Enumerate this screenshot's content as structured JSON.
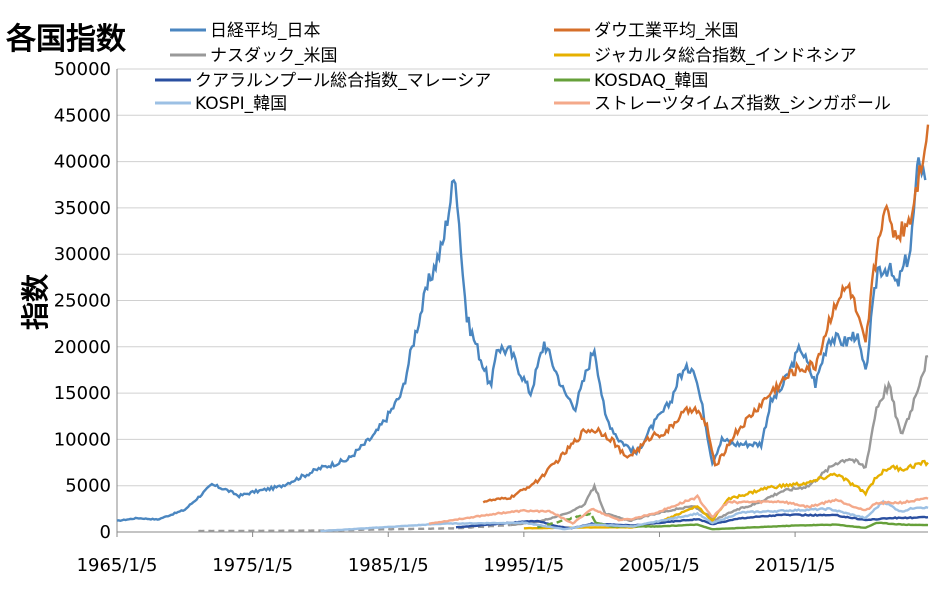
{
  "chart_data": {
    "type": "line",
    "title": "各国指数",
    "xlabel": "",
    "ylabel": "指数",
    "ylim": [
      0,
      50000
    ],
    "yticks": [
      "0",
      "5000",
      "10000",
      "15000",
      "20000",
      "25000",
      "30000",
      "35000",
      "40000",
      "45000",
      "50000"
    ],
    "xticks": [
      "1965/1/5",
      "1975/1/5",
      "1985/1/5",
      "1995/1/5",
      "2005/1/5",
      "2015/1/5"
    ],
    "xlim": [
      1965.0,
      2024.8
    ],
    "grid": "horizontal",
    "legend_position": "top",
    "series": [
      {
        "name": "日経平均_日本",
        "color": "#4a86c0",
        "width": 2.4,
        "x": [
          1965.0,
          1966.5,
          1968,
          1970,
          1972,
          1973,
          1974,
          1975,
          1977,
          1980,
          1982,
          1984,
          1985,
          1986,
          1987,
          1988,
          1989,
          1989.95,
          1990.5,
          1990.8,
          1992.6,
          1993,
          1994,
          1995.5,
          1996.5,
          1998,
          1998.8,
          2000.2,
          2001,
          2002,
          2003.3,
          2004.5,
          2005.8,
          2006.5,
          2007.5,
          2008.3,
          2008.9,
          2009.6,
          2010.5,
          2012.5,
          2013.2,
          2014,
          2015.4,
          2016.5,
          2017.5,
          2018.8,
          2019.5,
          2020.2,
          2020.6,
          2021.1,
          2021.9,
          2022.5,
          2023.5,
          2024.0,
          2024.2,
          2024.6
        ],
        "y": [
          1200,
          1500,
          1350,
          2400,
          5100,
          4600,
          3900,
          4300,
          4900,
          6900,
          7800,
          10500,
          12600,
          15000,
          21500,
          27000,
          31000,
          38900,
          28000,
          23000,
          15500,
          20000,
          19500,
          15000,
          20500,
          15000,
          13500,
          20000,
          12500,
          10000,
          8500,
          11500,
          14000,
          17000,
          18000,
          12500,
          7500,
          10000,
          9500,
          9500,
          14000,
          15500,
          20000,
          16000,
          21000,
          20500,
          21500,
          17000,
          22500,
          28500,
          28500,
          26500,
          30500,
          38500,
          40500,
          38000
        ]
      },
      {
        "name": "ダウ工業平均_米国",
        "color": "#d66f2a",
        "width": 2.4,
        "x": [
          1992,
          1994,
          1996,
          1998,
          1999.5,
          2000.5,
          2001.5,
          2002.5,
          2003.5,
          2004.5,
          2005.5,
          2006.5,
          2007.5,
          2008.5,
          2009.1,
          2010.5,
          2012,
          2013.5,
          2015,
          2016.5,
          2018,
          2019,
          2020.2,
          2020.8,
          2021.5,
          2022.5,
          2023.5,
          2024.3,
          2024.8
        ],
        "y": [
          3300,
          3700,
          5500,
          8500,
          11000,
          11000,
          10000,
          8000,
          9000,
          10500,
          10700,
          12500,
          13500,
          11500,
          7000,
          10500,
          13000,
          15500,
          17500,
          18000,
          25000,
          26500,
          20000,
          28000,
          35000,
          32000,
          34000,
          40000,
          44000
        ]
      },
      {
        "name": "ナスダック_米国",
        "color": "#999999",
        "width": 2.4,
        "dash": "6,4",
        "dash_before": 1994,
        "x": [
          1971,
          1980,
          1985,
          1990,
          1994,
          1996,
          1998,
          1999.5,
          2000.2,
          2001,
          2002.8,
          2005,
          2007.5,
          2009.1,
          2010.5,
          2012,
          2014,
          2016,
          2018,
          2019,
          2020.2,
          2021,
          2021.9,
          2022.8,
          2023.5,
          2024.3,
          2024.8
        ],
        "y": [
          100,
          150,
          300,
          400,
          750,
          1100,
          1900,
          3000,
          5000,
          2000,
          1200,
          2100,
          2800,
          1300,
          2300,
          3000,
          4400,
          5000,
          7500,
          8000,
          7000,
          13500,
          16000,
          10500,
          13000,
          17000,
          19000
        ]
      },
      {
        "name": "ジャカルタ総合指数_インドネシア",
        "color": "#e6b000",
        "width": 2.4,
        "x": [
          1995,
          2000,
          2003,
          2005,
          2007.8,
          2008.9,
          2010,
          2013,
          2016,
          2018,
          2020.2,
          2021,
          2022,
          2023,
          2024,
          2024.8
        ],
        "y": [
          400,
          500,
          500,
          1100,
          2800,
          1200,
          3500,
          4800,
          5300,
          6300,
          4200,
          6000,
          7000,
          6800,
          7300,
          7500
        ]
      },
      {
        "name": "クアラルンプール総合指数_マレーシア",
        "color": "#2a4fa0",
        "width": 2.4,
        "x": [
          1990,
          1994,
          1996,
          1997.5,
          1998.5,
          2000,
          2003,
          2007.8,
          2008.9,
          2011,
          2014,
          2018,
          2020.2,
          2022,
          2024,
          2024.8
        ],
        "y": [
          500,
          1000,
          1200,
          600,
          400,
          900,
          700,
          1400,
          850,
          1500,
          1850,
          1800,
          1300,
          1500,
          1550,
          1600
        ]
      },
      {
        "name": "KOSDAQ_韓国",
        "color": "#66a03a",
        "width": 2.4,
        "dash": "6,4",
        "dash_before": 2000,
        "x": [
          1996,
          1999.9,
          2000.3,
          2001.5,
          2005,
          2007.8,
          2008.9,
          2015,
          2018,
          2020.2,
          2021,
          2023,
          2024.8
        ],
        "y": [
          500,
          2000,
          1000,
          600,
          600,
          800,
          300,
          700,
          800,
          450,
          1000,
          800,
          750
        ]
      },
      {
        "name": "KOSPI_韓国",
        "color": "#9cc0e4",
        "width": 2.4,
        "x": [
          1980,
          1989,
          1995,
          1998,
          2000,
          2003,
          2007.8,
          2008.9,
          2011,
          2017.5,
          2020.2,
          2021.5,
          2022.8,
          2024,
          2024.8
        ],
        "y": [
          100,
          900,
          1000,
          300,
          800,
          600,
          2000,
          950,
          2100,
          2500,
          1500,
          3300,
          2200,
          2700,
          2600
        ]
      },
      {
        "name": "ストレーツタイムズ指数_シンガポール",
        "color": "#f4a98a",
        "width": 2.4,
        "x": [
          1988,
          1993,
          1995,
          1997,
          1998.6,
          2000,
          2002,
          2003,
          2005,
          2007.8,
          2008.9,
          2010,
          2014,
          2016,
          2018,
          2020.2,
          2021,
          2023,
          2024.8
        ],
        "y": [
          900,
          2000,
          2300,
          2200,
          900,
          2500,
          1300,
          1400,
          2200,
          3800,
          1600,
          3200,
          3300,
          2700,
          3500,
          2300,
          3100,
          3200,
          3600
        ]
      }
    ]
  }
}
